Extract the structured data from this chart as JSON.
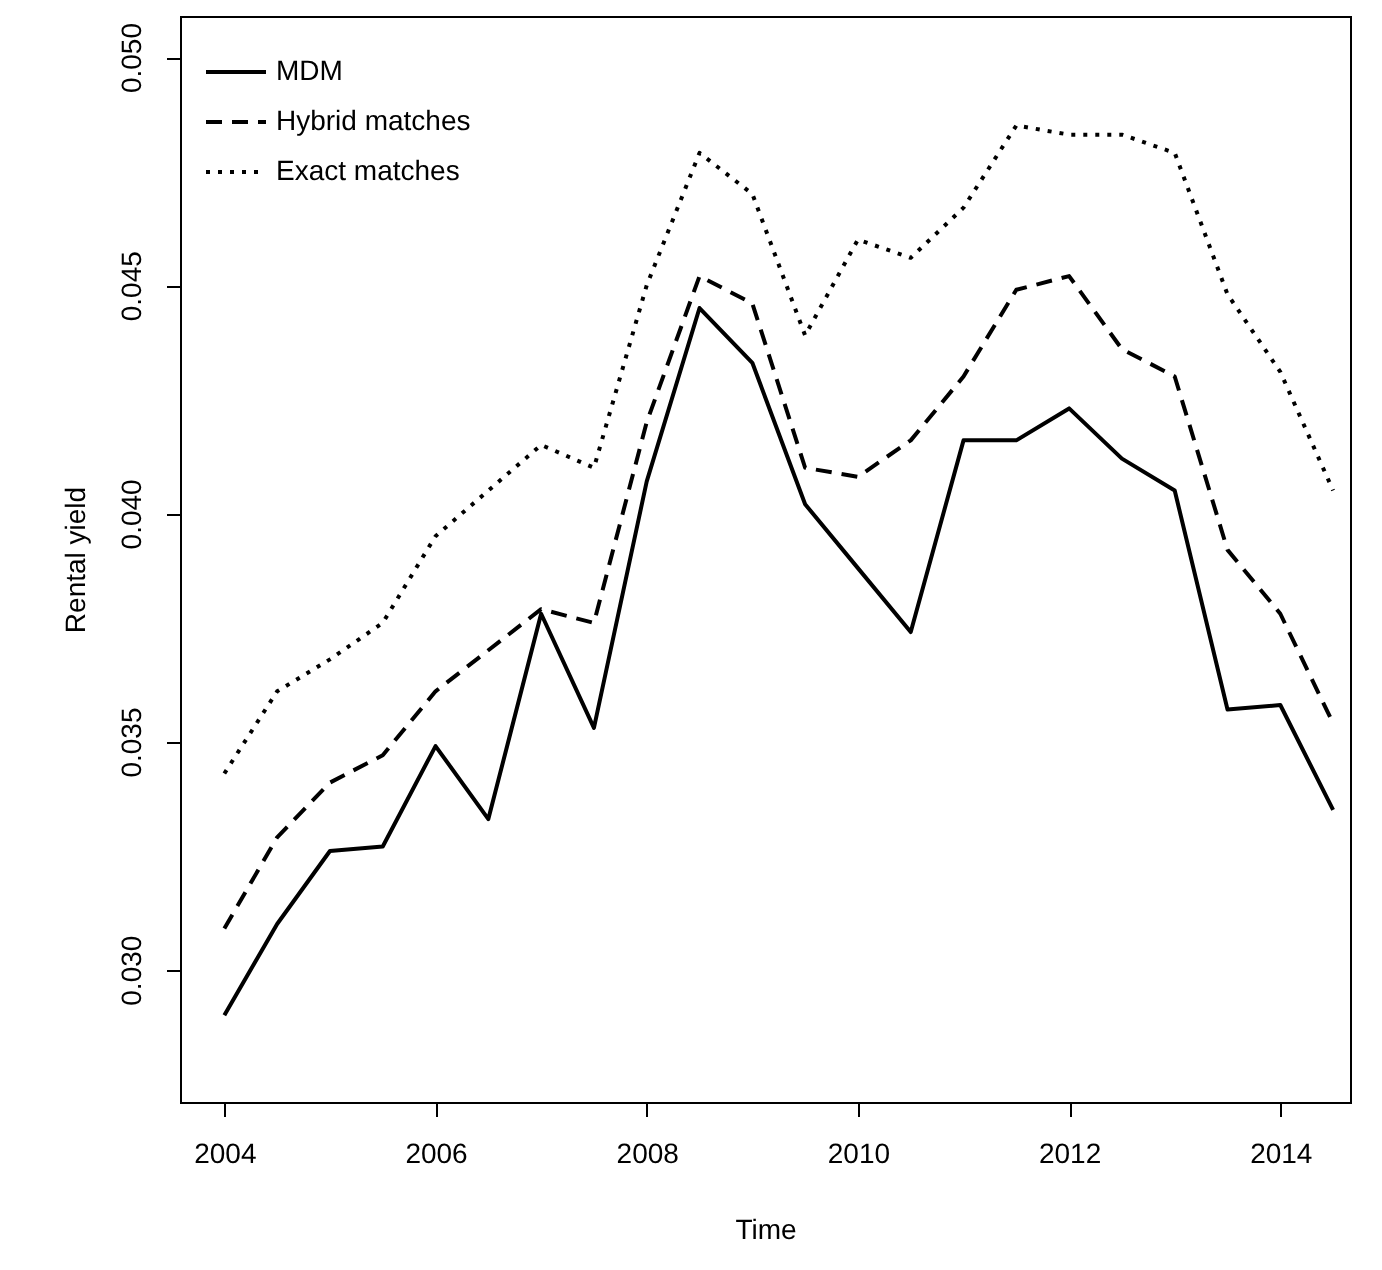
{
  "chart_data": {
    "type": "line",
    "xlabel": "Time",
    "ylabel": "Rental yield",
    "x": [
      2004,
      2004.5,
      2005,
      2005.5,
      2006,
      2006.5,
      2007,
      2007.5,
      2008,
      2008.5,
      2009,
      2009.5,
      2010,
      2010.5,
      2011,
      2011.5,
      2012,
      2012.5,
      2013,
      2013.5,
      2014,
      2014.5
    ],
    "series": [
      {
        "name": "MDM",
        "color": "#000000",
        "line_style": "solid",
        "values": [
          0.029,
          0.031,
          0.0326,
          0.0327,
          0.0349,
          0.0333,
          0.0378,
          0.0353,
          0.0407,
          0.0445,
          0.0433,
          0.0402,
          0.0388,
          0.0374,
          0.0416,
          0.0416,
          0.0423,
          0.0412,
          0.0405,
          0.0357,
          0.0358,
          0.0335
        ]
      },
      {
        "name": "Hybrid matches",
        "color": "#000000",
        "line_style": "dashed",
        "values": [
          0.0309,
          0.0329,
          0.0341,
          0.0347,
          0.0361,
          0.037,
          0.0379,
          0.0376,
          0.042,
          0.0452,
          0.0446,
          0.041,
          0.0408,
          0.0416,
          0.043,
          0.0449,
          0.0452,
          0.0436,
          0.043,
          0.0392,
          0.0378,
          0.0354
        ]
      },
      {
        "name": "Exact matches",
        "color": "#000000",
        "line_style": "dotted",
        "values": [
          0.0343,
          0.0361,
          0.0368,
          0.0376,
          0.0395,
          0.0405,
          0.0415,
          0.041,
          0.045,
          0.0479,
          0.047,
          0.0439,
          0.046,
          0.0456,
          0.0467,
          0.0485,
          0.0483,
          0.0483,
          0.0479,
          0.0448,
          0.0431,
          0.0405
        ]
      }
    ],
    "xlim": [
      2003.58,
      2014.66
    ],
    "xticks": [
      2004,
      2006,
      2008,
      2010,
      2012,
      2014
    ],
    "ylim": [
      0.0271,
      0.0509
    ],
    "yticks": [
      {
        "value": 0.03,
        "label": "0.030"
      },
      {
        "value": 0.035,
        "label": "0.035"
      },
      {
        "value": 0.04,
        "label": "0.040"
      },
      {
        "value": 0.045,
        "label": "0.045"
      },
      {
        "value": 0.05,
        "label": "0.050"
      }
    ],
    "legend": "top left",
    "grid": false,
    "marker": "none"
  }
}
